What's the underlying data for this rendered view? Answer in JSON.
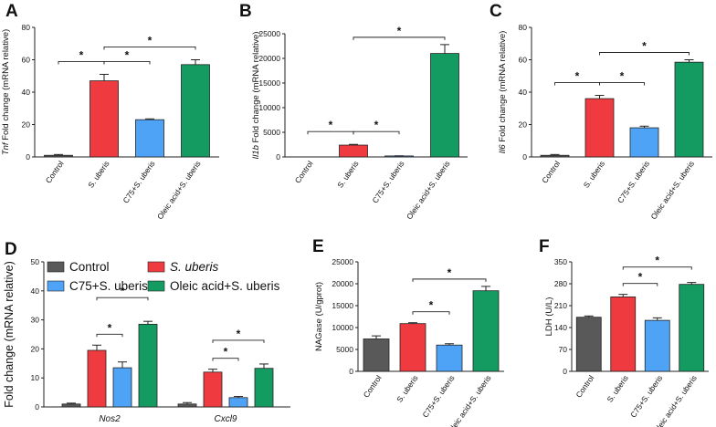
{
  "figure": {
    "colors": {
      "Control": "#595959",
      "S. uberis": "#ef3b3f",
      "C75+S. uberis": "#4fa3f7",
      "Oleic acid+S. uberis": "#149b62"
    }
  },
  "chart_data": [
    {
      "panel": "A",
      "type": "bar",
      "title": "",
      "ylabel_parts": [
        "Tnf",
        " Fold change  (mRNA relative)"
      ],
      "ylim": [
        0,
        80
      ],
      "ticks": [
        0,
        20,
        40,
        60,
        80
      ],
      "categories": [
        "Control",
        "S. uberis",
        "C75+S. uberis",
        "Oleic acid+S. uberis"
      ],
      "values": [
        1,
        47,
        23,
        57
      ],
      "errors": [
        0.5,
        4,
        0.5,
        3
      ],
      "significance": [
        {
          "from": 0,
          "to": 1,
          "level": 1,
          "label": "*"
        },
        {
          "from": 1,
          "to": 2,
          "level": 1,
          "label": "*"
        },
        {
          "from": 1,
          "to": 3,
          "level": 2,
          "label": "*"
        }
      ]
    },
    {
      "panel": "B",
      "type": "bar",
      "title": "",
      "ylabel_parts": [
        "Il1b",
        " Fold change  (mRNA relative)"
      ],
      "ylim": [
        0,
        25000
      ],
      "ticks": [
        0,
        5000,
        10000,
        15000,
        20000,
        25000
      ],
      "categories": [
        "Control",
        "S. uberis",
        "C75+S. uberis",
        "Oleic acid+S. uberis"
      ],
      "values": [
        0,
        2400,
        200,
        21000
      ],
      "errors": [
        0,
        150,
        30,
        1800
      ],
      "significance": [
        {
          "from": 0,
          "to": 1,
          "level": 1,
          "label": "*"
        },
        {
          "from": 1,
          "to": 2,
          "level": 1,
          "label": "*"
        },
        {
          "from": 1,
          "to": 3,
          "level": 2,
          "label": "*"
        }
      ]
    },
    {
      "panel": "C",
      "type": "bar",
      "title": "",
      "ylabel_parts": [
        "Il6",
        " Fold change  (mRNA relative)"
      ],
      "ylim": [
        0,
        80
      ],
      "ticks": [
        0,
        20,
        40,
        60,
        80
      ],
      "categories": [
        "Control",
        "S. uberis",
        "C75+S. uberis",
        "Oleic acid+S. uberis"
      ],
      "values": [
        1,
        36,
        18,
        58.5
      ],
      "errors": [
        0.5,
        2,
        1,
        1.5
      ],
      "significance": [
        {
          "from": 0,
          "to": 1,
          "level": 1,
          "label": "*"
        },
        {
          "from": 1,
          "to": 2,
          "level": 1,
          "label": "*"
        },
        {
          "from": 1,
          "to": 3,
          "level": 2,
          "label": "*"
        }
      ]
    },
    {
      "panel": "D",
      "type": "bar",
      "title": "",
      "ylabel": "Fold change (mRNA relative)",
      "ylim": [
        0,
        50
      ],
      "ticks": [
        0,
        10,
        20,
        30,
        40,
        50
      ],
      "legend": [
        "Control",
        "S. uberis",
        "C75+S. uberis",
        "Oleic acid+S. uberis"
      ],
      "legend_position": "top",
      "groups": [
        "Nos2",
        "Cxcl9"
      ],
      "series": [
        {
          "name": "Control",
          "values": [
            1,
            1
          ],
          "errors": [
            0.3,
            0.5
          ]
        },
        {
          "name": "S. uberis",
          "values": [
            19.5,
            12
          ],
          "errors": [
            1.8,
            1
          ]
        },
        {
          "name": "C75+S. uberis",
          "values": [
            13.5,
            3.2
          ],
          "errors": [
            2,
            0.4
          ]
        },
        {
          "name": "Oleic acid+S. uberis",
          "values": [
            28.5,
            13.3
          ],
          "errors": [
            1,
            1.5
          ]
        }
      ],
      "significance": [
        {
          "group": 0,
          "from": 1,
          "to": 2,
          "level": 1,
          "label": "*"
        },
        {
          "group": 0,
          "from": 1,
          "to": 3,
          "level": 2,
          "label": "*"
        },
        {
          "group": 1,
          "from": 1,
          "to": 2,
          "level": 1,
          "label": "*"
        },
        {
          "group": 1,
          "from": 1,
          "to": 3,
          "level": 2,
          "label": "*"
        }
      ]
    },
    {
      "panel": "E",
      "type": "bar",
      "title": "",
      "ylabel": "NAGase (U/gprot)",
      "ylim": [
        0,
        25000
      ],
      "ticks": [
        0,
        5000,
        10000,
        15000,
        20000,
        25000
      ],
      "categories": [
        "Control",
        "S. uberis",
        "C75+S. uberis",
        "Oleic acid+S. uberis"
      ],
      "values": [
        7400,
        10900,
        6000,
        18400
      ],
      "errors": [
        700,
        200,
        300,
        1000
      ],
      "significance": [
        {
          "from": 1,
          "to": 2,
          "level": 1,
          "label": "*"
        },
        {
          "from": 1,
          "to": 3,
          "level": 2,
          "label": "*"
        }
      ]
    },
    {
      "panel": "F",
      "type": "bar",
      "title": "",
      "ylabel": "LDH (U/L)",
      "ylim": [
        0,
        350
      ],
      "ticks": [
        0,
        70,
        140,
        210,
        280,
        350
      ],
      "categories": [
        "Control",
        "S. uberis",
        "C75+S. uberis",
        "Oleic acid+S. uberis"
      ],
      "values": [
        173,
        238,
        163,
        278
      ],
      "errors": [
        4,
        8,
        8,
        6
      ],
      "significance": [
        {
          "from": 1,
          "to": 2,
          "level": 1,
          "label": "*"
        },
        {
          "from": 1,
          "to": 3,
          "level": 2,
          "label": "*"
        }
      ]
    }
  ]
}
